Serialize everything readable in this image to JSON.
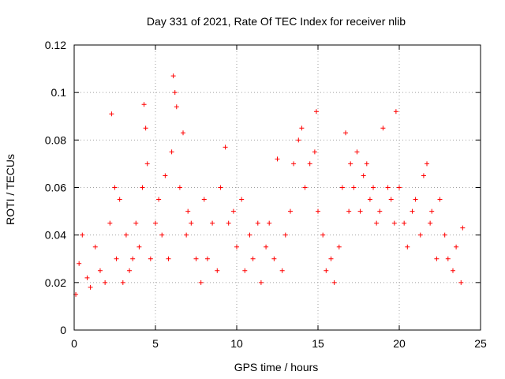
{
  "chart_data": {
    "type": "scatter",
    "title": "Day 331 of 2021, Rate Of TEC Index for receiver nlib",
    "xlabel": "GPS time / hours",
    "ylabel": "ROTI / TECUs",
    "xlim": [
      0,
      25
    ],
    "ylim": [
      0,
      0.12
    ],
    "x_ticks": [
      "0",
      "5",
      "10",
      "15",
      "20",
      "25"
    ],
    "y_ticks": [
      "0",
      "0.02",
      "0.04",
      "0.06",
      "0.08",
      "0.1",
      "0.12"
    ],
    "grid": true,
    "marker": "plus",
    "colors": {
      "points": "#ff0000",
      "grid": "#a0a0a0",
      "axis": "#000000"
    },
    "series": [
      {
        "x": [
          0.1,
          0.3,
          0.5,
          0.8,
          1.0,
          1.3,
          1.6,
          1.9,
          2.2,
          2.3,
          2.5,
          2.6,
          2.8,
          3.0,
          3.2,
          3.4,
          3.6,
          3.8,
          4.0,
          4.2,
          4.3,
          4.4,
          4.5,
          4.7,
          5.0,
          5.2,
          5.4,
          5.6,
          5.8,
          6.0,
          6.1,
          6.2,
          6.3,
          6.5,
          6.7,
          6.9,
          7.0,
          7.2,
          7.5,
          7.8,
          8.0,
          8.2,
          8.5,
          8.8,
          9.0,
          9.3,
          9.5,
          9.8,
          10.0,
          10.3,
          10.5,
          10.8,
          11.0,
          11.3,
          11.5,
          11.8,
          12.0,
          12.3,
          12.5,
          12.8,
          13.0,
          13.3,
          13.5,
          13.8,
          14.0,
          14.2,
          14.5,
          14.8,
          14.9,
          15.0,
          15.3,
          15.5,
          15.8,
          16.0,
          16.3,
          16.5,
          16.7,
          16.9,
          17.0,
          17.2,
          17.4,
          17.6,
          17.8,
          18.0,
          18.2,
          18.4,
          18.6,
          18.8,
          19.0,
          19.3,
          19.5,
          19.7,
          19.8,
          20.0,
          20.3,
          20.5,
          20.8,
          21.0,
          21.3,
          21.5,
          21.7,
          21.9,
          22.0,
          22.3,
          22.5,
          22.8,
          23.0,
          23.3,
          23.5,
          23.8,
          23.9
        ],
        "y": [
          0.015,
          0.028,
          0.04,
          0.022,
          0.018,
          0.035,
          0.025,
          0.02,
          0.045,
          0.091,
          0.06,
          0.03,
          0.055,
          0.02,
          0.04,
          0.025,
          0.03,
          0.045,
          0.035,
          0.06,
          0.095,
          0.085,
          0.07,
          0.03,
          0.045,
          0.055,
          0.04,
          0.065,
          0.03,
          0.075,
          0.107,
          0.1,
          0.094,
          0.06,
          0.083,
          0.04,
          0.05,
          0.045,
          0.03,
          0.02,
          0.055,
          0.03,
          0.045,
          0.025,
          0.06,
          0.077,
          0.045,
          0.05,
          0.035,
          0.055,
          0.025,
          0.04,
          0.03,
          0.045,
          0.02,
          0.035,
          0.045,
          0.03,
          0.072,
          0.025,
          0.04,
          0.05,
          0.07,
          0.08,
          0.085,
          0.06,
          0.07,
          0.075,
          0.092,
          0.05,
          0.04,
          0.025,
          0.03,
          0.02,
          0.035,
          0.06,
          0.083,
          0.05,
          0.07,
          0.06,
          0.075,
          0.05,
          0.065,
          0.07,
          0.055,
          0.06,
          0.045,
          0.05,
          0.085,
          0.06,
          0.055,
          0.045,
          0.092,
          0.06,
          0.045,
          0.035,
          0.05,
          0.055,
          0.04,
          0.065,
          0.07,
          0.045,
          0.05,
          0.03,
          0.055,
          0.04,
          0.03,
          0.025,
          0.035,
          0.02,
          0.043
        ]
      }
    ]
  }
}
